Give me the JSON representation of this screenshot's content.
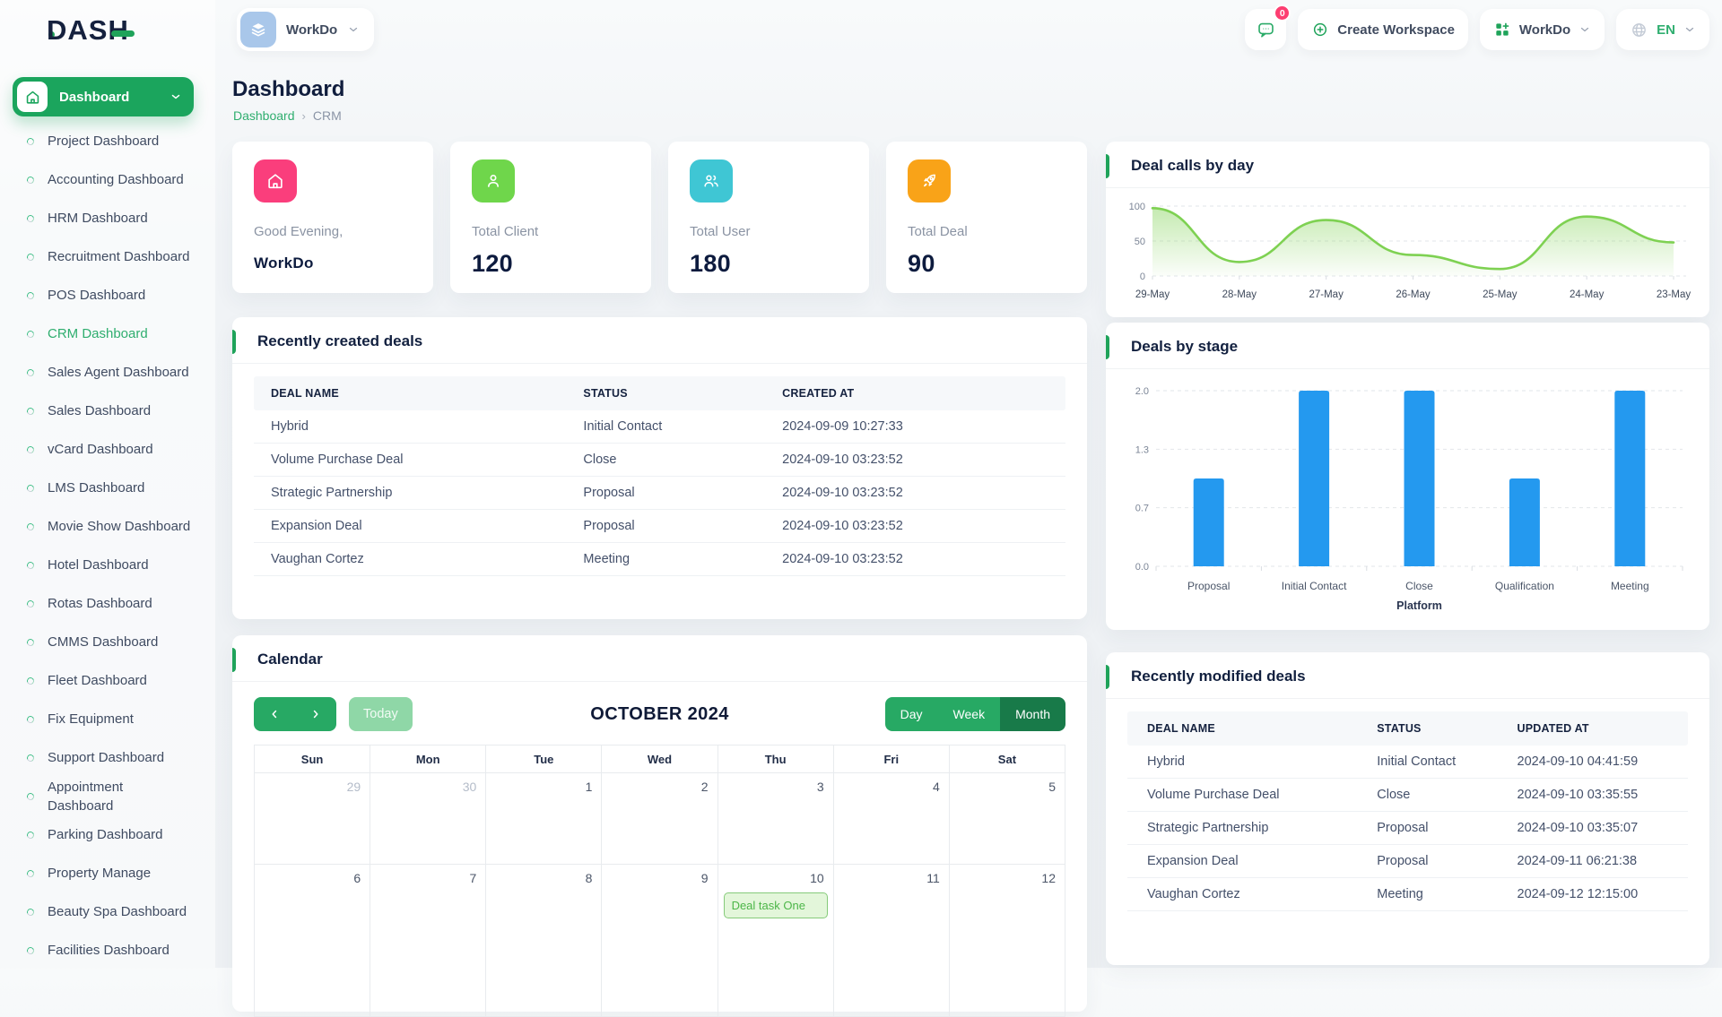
{
  "brand": {
    "logo_text": "DASH"
  },
  "topbar": {
    "workspace_pill_label": "WorkDo",
    "message_badge": "0",
    "create_workspace_label": "Create Workspace",
    "workspace_menu_label": "WorkDo",
    "language": "EN"
  },
  "sidebar": {
    "active_button_label": "Dashboard",
    "items": [
      {
        "label": "Project Dashboard"
      },
      {
        "label": "Accounting Dashboard"
      },
      {
        "label": "HRM Dashboard"
      },
      {
        "label": "Recruitment Dashboard"
      },
      {
        "label": "POS Dashboard"
      },
      {
        "label": "CRM Dashboard"
      },
      {
        "label": "Sales Agent Dashboard"
      },
      {
        "label": "Sales Dashboard"
      },
      {
        "label": "vCard Dashboard"
      },
      {
        "label": "LMS Dashboard"
      },
      {
        "label": "Movie Show Dashboard"
      },
      {
        "label": "Hotel Dashboard"
      },
      {
        "label": "Rotas Dashboard"
      },
      {
        "label": "CMMS Dashboard"
      },
      {
        "label": "Fleet Dashboard"
      },
      {
        "label": "Fix Equipment"
      },
      {
        "label": "Support Dashboard"
      },
      {
        "label": "Appointment Dashboard"
      },
      {
        "label": "Parking Dashboard"
      },
      {
        "label": "Property Manage"
      },
      {
        "label": "Beauty Spa Dashboard"
      },
      {
        "label": "Facilities Dashboard"
      }
    ],
    "active_index": 5
  },
  "page": {
    "title": "Dashboard",
    "breadcrumb": [
      "Dashboard",
      "CRM"
    ]
  },
  "stats": {
    "cards": [
      {
        "label": "Good Evening,",
        "value": "WorkDo",
        "icon": "home-icon",
        "color": "#fa3e7c"
      },
      {
        "label": "Total Client",
        "value": "120",
        "icon": "user-icon",
        "color": "#6fd64b"
      },
      {
        "label": "Total User",
        "value": "180",
        "icon": "users-icon",
        "color": "#3fc6d4"
      },
      {
        "label": "Total Deal",
        "value": "90",
        "icon": "rocket-icon",
        "color": "#f9a318"
      }
    ]
  },
  "sections": {
    "deal_calls_title": "Deal calls by day",
    "deals_by_stage_title": "Deals by stage",
    "recent_created_title": "Recently created deals",
    "calendar_title": "Calendar",
    "recent_modified_title": "Recently modified deals"
  },
  "chart_data": [
    {
      "id": "deal-calls-by-day",
      "type": "area",
      "title": "Deal calls by day",
      "x": [
        "29-May",
        "28-May",
        "27-May",
        "26-May",
        "25-May",
        "24-May",
        "23-May"
      ],
      "values": [
        97,
        20,
        80,
        30,
        10,
        85,
        48
      ],
      "ylim": [
        0,
        100
      ],
      "yticks": [
        100,
        50,
        0
      ],
      "color": "#7ed152",
      "grid": "dashed-horizontal",
      "legend": "none"
    },
    {
      "id": "deals-by-stage",
      "type": "bar",
      "title": "Deals by stage",
      "categories": [
        "Proposal",
        "Initial Contact",
        "Close",
        "Qualification",
        "Meeting"
      ],
      "values": [
        1,
        2,
        2,
        1,
        2
      ],
      "ylim": [
        0,
        2
      ],
      "ytick_labels": [
        "0.0",
        "0.7",
        "1.3",
        "2.0"
      ],
      "xlabel": "Platform",
      "color": "#2499ef",
      "grid": "dashed-horizontal",
      "legend": "none"
    }
  ],
  "tables": {
    "created": {
      "headers": [
        "DEAL NAME",
        "STATUS",
        "CREATED AT"
      ],
      "rows": [
        [
          "Hybrid",
          "Initial Contact",
          "2024-09-09 10:27:33"
        ],
        [
          "Volume Purchase Deal",
          "Close",
          "2024-09-10 03:23:52"
        ],
        [
          "Strategic Partnership",
          "Proposal",
          "2024-09-10 03:23:52"
        ],
        [
          "Expansion Deal",
          "Proposal",
          "2024-09-10 03:23:52"
        ],
        [
          "Vaughan Cortez",
          "Meeting",
          "2024-09-10 03:23:52"
        ]
      ]
    },
    "modified": {
      "headers": [
        "DEAL NAME",
        "STATUS",
        "UPDATED AT"
      ],
      "rows": [
        [
          "Hybrid",
          "Initial Contact",
          "2024-09-10 04:41:59"
        ],
        [
          "Volume Purchase Deal",
          "Close",
          "2024-09-10 03:35:55"
        ],
        [
          "Strategic Partnership",
          "Proposal",
          "2024-09-10 03:35:07"
        ],
        [
          "Expansion Deal",
          "Proposal",
          "2024-09-11 06:21:38"
        ],
        [
          "Vaughan Cortez",
          "Meeting",
          "2024-09-12 12:15:00"
        ]
      ]
    }
  },
  "calendar": {
    "toolbar": {
      "today_label": "Today",
      "title": "OCTOBER 2024",
      "views": [
        "Day",
        "Week",
        "Month"
      ],
      "active_view": "Month"
    },
    "weekdays": [
      "Sun",
      "Mon",
      "Tue",
      "Wed",
      "Thu",
      "Fri",
      "Sat"
    ],
    "weeks": [
      [
        {
          "d": "29"
        },
        {
          "d": "30"
        },
        {
          "d": "1"
        },
        {
          "d": "2"
        },
        {
          "d": "3"
        },
        {
          "d": "4"
        },
        {
          "d": "5"
        }
      ],
      [
        {
          "d": "6"
        },
        {
          "d": "7"
        },
        {
          "d": "8"
        },
        {
          "d": "9"
        },
        {
          "d": "10"
        },
        {
          "d": "11"
        },
        {
          "d": "12"
        }
      ]
    ],
    "event": {
      "label": "Deal task One",
      "day": "10"
    }
  }
}
